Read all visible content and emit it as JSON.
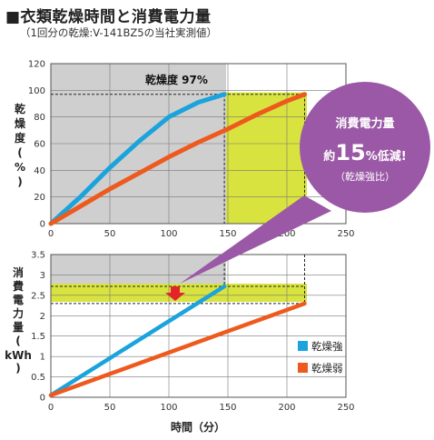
{
  "title": "■衣類乾燥時間と消費電力量",
  "subtitle": "（1回分の乾燥:V-141BZ5の当社実測値）",
  "colors": {
    "strong": "#1aa3dc",
    "weak": "#ee5a1e",
    "highlight": "#d8e33f",
    "gray": "#cfcfcf",
    "bubble": "#9b58a6",
    "arrow": "#e3242b"
  },
  "chart_data": [
    {
      "type": "line",
      "ylabel": "乾燥度(%)",
      "xlim": [
        0,
        250
      ],
      "ylim": [
        0,
        120
      ],
      "xticks": [
        "0",
        "50",
        "100",
        "150",
        "200",
        "250"
      ],
      "yticks": [
        "0",
        "20",
        "40",
        "60",
        "80",
        "100",
        "120"
      ],
      "grid": true,
      "annotation": "乾燥度 97%",
      "series": [
        {
          "name": "乾燥強",
          "x": [
            0,
            25,
            50,
            75,
            100,
            125,
            147
          ],
          "y": [
            0,
            20,
            42,
            62,
            80,
            91,
            97
          ]
        },
        {
          "name": "乾燥弱",
          "x": [
            0,
            25,
            50,
            75,
            100,
            125,
            150,
            175,
            200,
            215
          ],
          "y": [
            0,
            13,
            26,
            38,
            50,
            61,
            71,
            82,
            92,
            97
          ]
        }
      ]
    },
    {
      "type": "line",
      "ylabel": "消費電力量(kWh)",
      "xlabel": "時間（分）",
      "xlim": [
        0,
        250
      ],
      "ylim": [
        0,
        3.5
      ],
      "xticks": [
        "0",
        "50",
        "100",
        "150",
        "200",
        "250"
      ],
      "yticks": [
        "0",
        "0.5",
        "1",
        "1.5",
        "2",
        "2.5",
        "3",
        "3.5"
      ],
      "grid": true,
      "legend": {
        "position": "right",
        "entries": [
          "乾燥強",
          "乾燥弱"
        ]
      },
      "series": [
        {
          "name": "乾燥強",
          "x": [
            0,
            147
          ],
          "y": [
            0.05,
            2.72
          ]
        },
        {
          "name": "乾燥弱",
          "x": [
            0,
            215
          ],
          "y": [
            0.05,
            2.3
          ]
        }
      ]
    }
  ],
  "callout": {
    "line1": "消費電力量",
    "prefix": "約",
    "percent": "15",
    "suffix": "%低減!",
    "line3": "（乾燥強比）"
  }
}
